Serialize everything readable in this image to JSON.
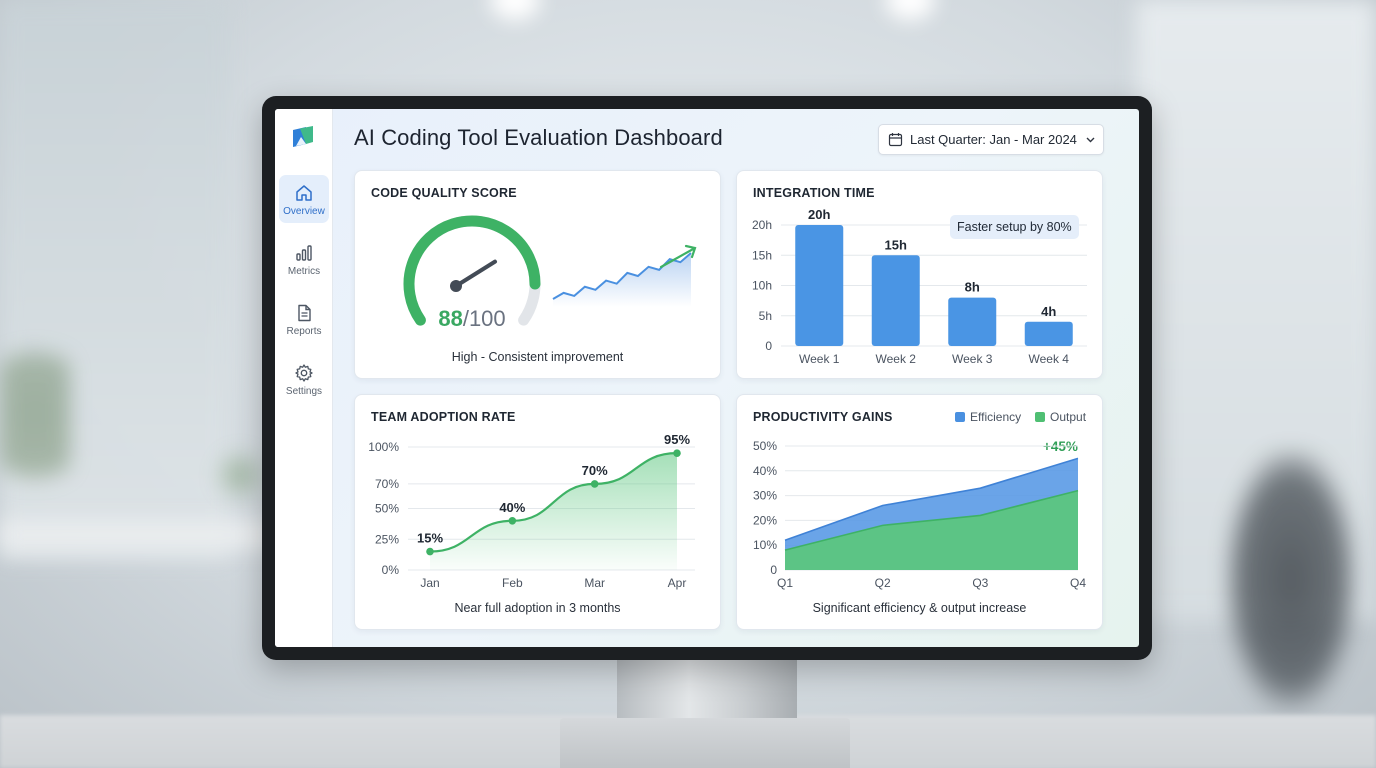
{
  "app": {
    "title": "AI Coding Tool Evaluation Dashboard",
    "date_range": "Last Quarter: Jan - Mar 2024"
  },
  "sidebar": {
    "items": [
      {
        "label": "Overview",
        "icon": "home-icon",
        "active": true
      },
      {
        "label": "Metrics",
        "icon": "bar-chart-icon",
        "active": false
      },
      {
        "label": "Reports",
        "icon": "document-icon",
        "active": false
      },
      {
        "label": "Settings",
        "icon": "gear-icon",
        "active": false
      }
    ]
  },
  "colors": {
    "accent_blue": "#4a95e4",
    "accent_green": "#3aa862",
    "text_dark": "#1f2732"
  },
  "cards": {
    "code_quality": {
      "title": "CODE QUALITY SCORE",
      "score": "88",
      "score_max": "/100",
      "caption": "High - Consistent improvement"
    },
    "integration": {
      "title": "INTEGRATION TIME",
      "badge": "Faster setup by 80%"
    },
    "adoption": {
      "title": "TEAM ADOPTION RATE",
      "caption": "Near full adoption in 3 months"
    },
    "productivity": {
      "title": "PRODUCTIVITY GAINS",
      "legend_efficiency": "Efficiency",
      "legend_output": "Output",
      "delta": "+45%",
      "caption": "Significant efficiency & output increase"
    }
  },
  "chart_data": [
    {
      "type": "gauge",
      "value": 88,
      "max": 100,
      "sparkline": [
        10,
        14,
        12,
        18,
        16,
        22,
        20,
        27,
        25,
        31,
        29,
        36,
        34,
        40
      ]
    },
    {
      "type": "bar",
      "categories": [
        "Week 1",
        "Week 2",
        "Week 3",
        "Week 4"
      ],
      "values": [
        20,
        15,
        8,
        4
      ],
      "value_labels": [
        "20h",
        "15h",
        "8h",
        "4h"
      ],
      "yticks": [
        "0",
        "5h",
        "10h",
        "15h",
        "20h"
      ],
      "ylim": [
        0,
        20
      ],
      "grid": true
    },
    {
      "type": "area",
      "categories": [
        "Jan",
        "Feb",
        "Mar",
        "Apr"
      ],
      "values": [
        15,
        40,
        70,
        95
      ],
      "value_labels": [
        "15%",
        "40%",
        "70%",
        "95%"
      ],
      "yticks": [
        "0%",
        "25%",
        "50%",
        "70%",
        "100%"
      ],
      "ylim": [
        0,
        100
      ],
      "grid": true
    },
    {
      "type": "area",
      "categories": [
        "Q1",
        "Q2",
        "Q3",
        "Q4"
      ],
      "series": [
        {
          "name": "Efficiency",
          "values": [
            12,
            26,
            33,
            45
          ]
        },
        {
          "name": "Output",
          "values": [
            8,
            18,
            22,
            32
          ]
        }
      ],
      "yticks": [
        "0",
        "10%",
        "20%",
        "30%",
        "40%",
        "50%"
      ],
      "ylim": [
        0,
        50
      ],
      "legend": "top-right",
      "grid": true
    }
  ]
}
